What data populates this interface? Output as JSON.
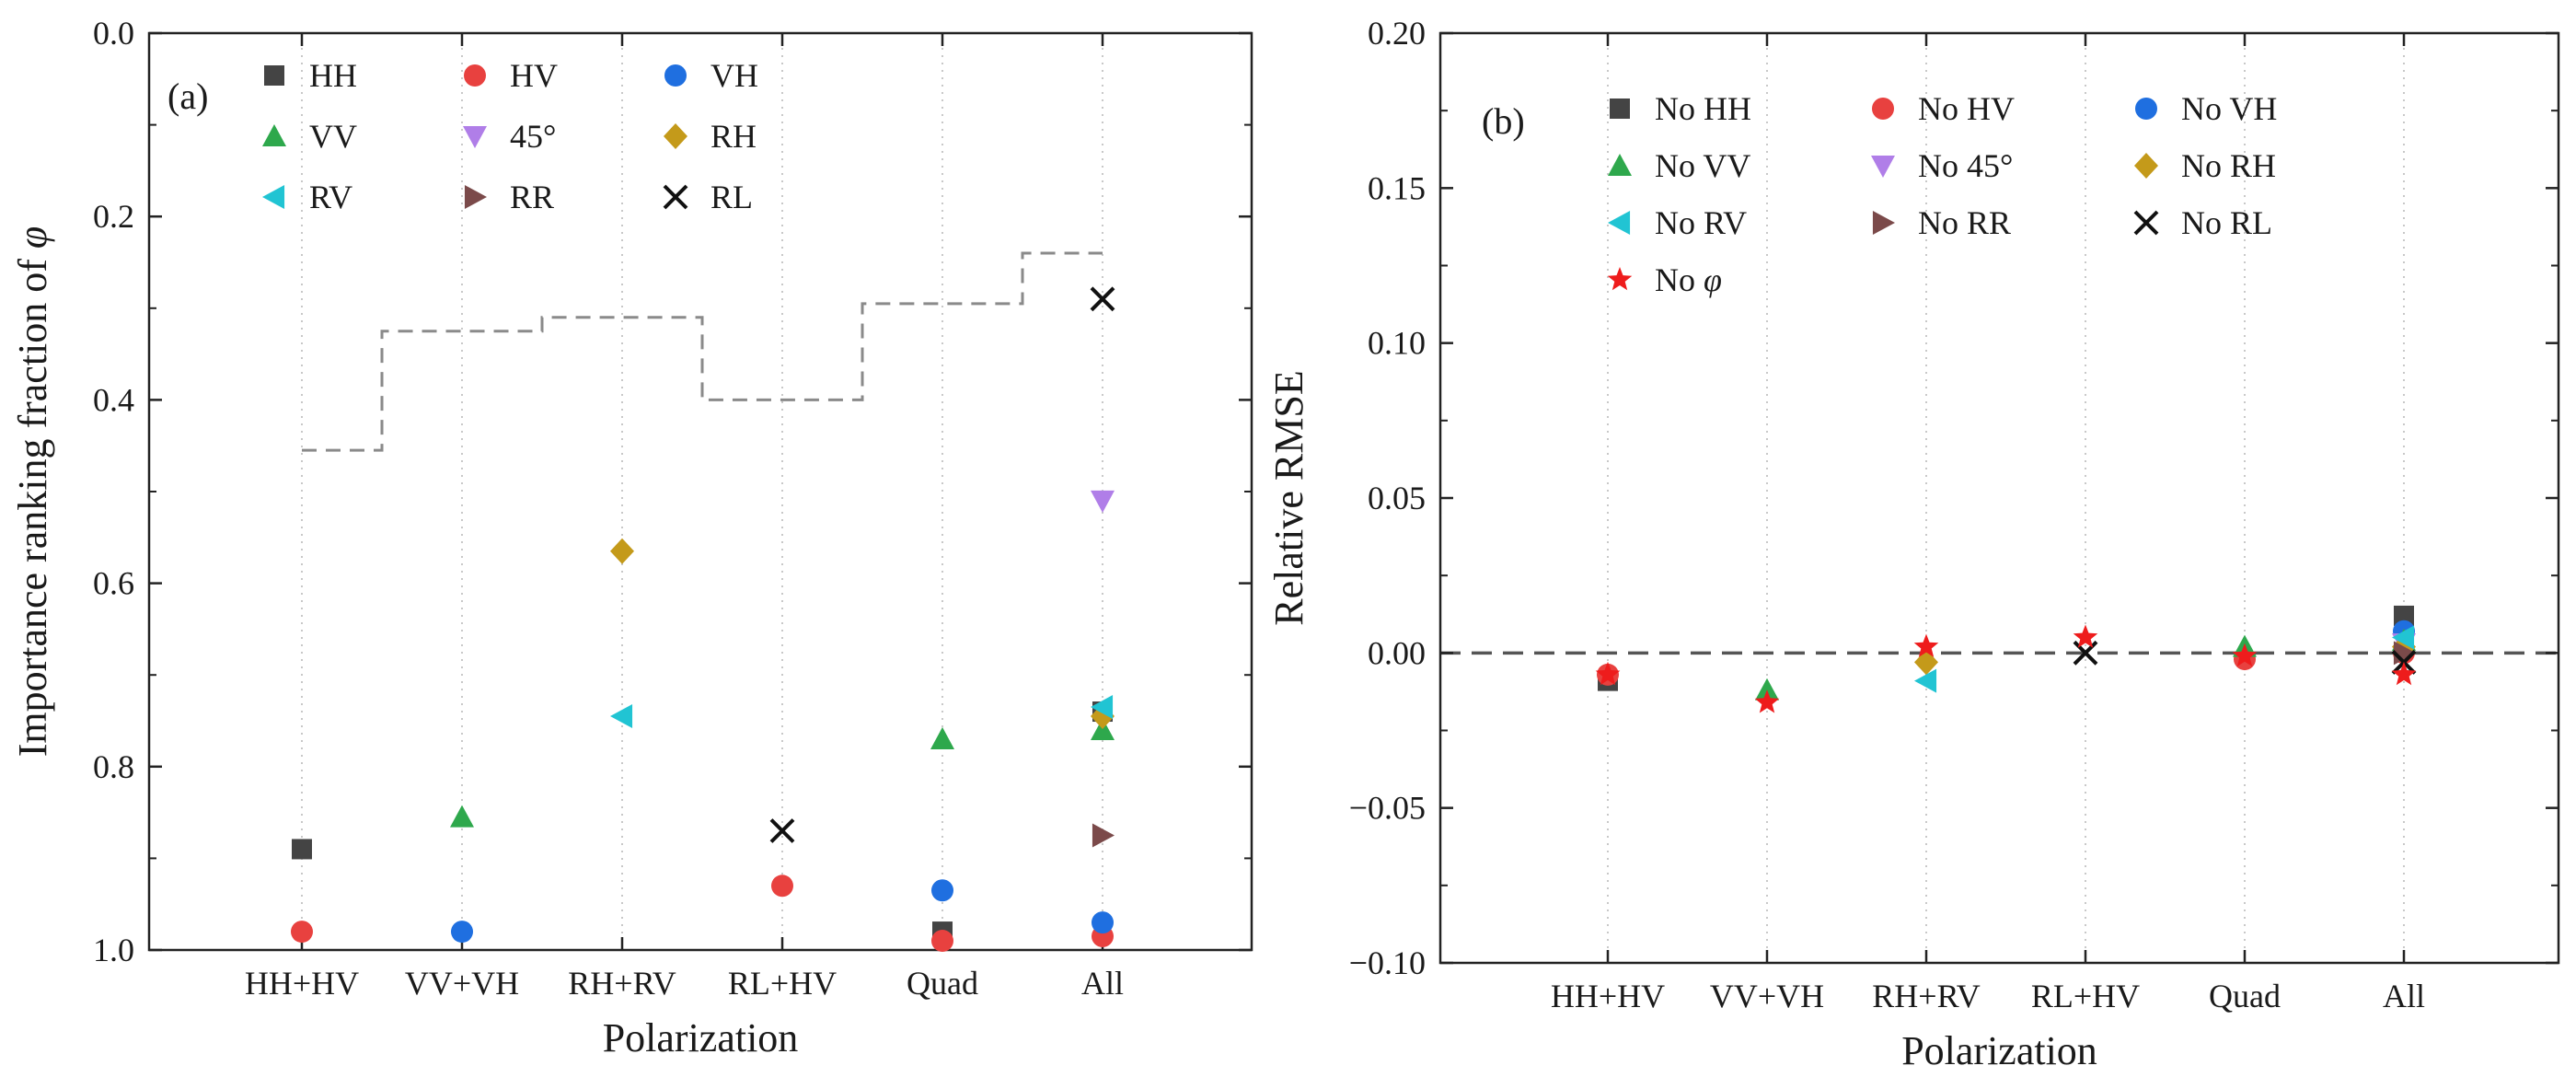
{
  "chart_data": [
    {
      "type": "scatter",
      "panel_label": "(a)",
      "xlabel": "Polarization",
      "ylabel_text": "Importance ranking fraction of ",
      "ylabel_symbol": "φ",
      "categories": [
        "HH+HV",
        "VV+VH",
        "RH+RV",
        "RL+HV",
        "Quad",
        "All"
      ],
      "ylim": [
        0.0,
        1.0
      ],
      "y_inverted": true,
      "y_ticks": [
        "0.0",
        "0.2",
        "0.4",
        "0.6",
        "0.8",
        "1.0"
      ],
      "grid": "vertical dotted",
      "legend_position": "top-left",
      "series": [
        {
          "name": "HH",
          "marker": "square",
          "color": "#444444",
          "points": [
            [
              "HH+HV",
              0.89
            ],
            [
              "Quad",
              0.98
            ],
            [
              "All",
              0.74
            ]
          ]
        },
        {
          "name": "HV",
          "marker": "circle",
          "color": "#e8413f",
          "points": [
            [
              "HH+HV",
              0.98
            ],
            [
              "RL+HV",
              0.93
            ],
            [
              "Quad",
              0.99
            ],
            [
              "All",
              0.985
            ]
          ]
        },
        {
          "name": "VH",
          "marker": "circle",
          "color": "#1f6fe0",
          "points": [
            [
              "VV+VH",
              0.98
            ],
            [
              "Quad",
              0.935
            ],
            [
              "All",
              0.97
            ]
          ]
        },
        {
          "name": "VV",
          "marker": "triangle-up",
          "color": "#2ea84c",
          "points": [
            [
              "VV+VH",
              0.855
            ],
            [
              "Quad",
              0.77
            ],
            [
              "All",
              0.76
            ]
          ]
        },
        {
          "name": "45°",
          "marker": "triangle-down",
          "color": "#b07ee8",
          "points": [
            [
              "All",
              0.51
            ]
          ]
        },
        {
          "name": "RH",
          "marker": "diamond",
          "color": "#c49a1a",
          "points": [
            [
              "RH+RV",
              0.565
            ],
            [
              "All",
              0.745
            ]
          ]
        },
        {
          "name": "RV",
          "marker": "triangle-left",
          "color": "#21c4d3",
          "points": [
            [
              "RH+RV",
              0.745
            ],
            [
              "All",
              0.735
            ]
          ]
        },
        {
          "name": "RR",
          "marker": "triangle-right",
          "color": "#7b4a4a",
          "points": [
            [
              "All",
              0.875
            ]
          ]
        },
        {
          "name": "RL",
          "marker": "x",
          "color": "#111111",
          "points": [
            [
              "RL+HV",
              0.87
            ],
            [
              "All",
              0.29
            ]
          ]
        }
      ],
      "reference_line": {
        "style": "dashed",
        "color": "#888888",
        "steps": [
          {
            "category": "HH+HV",
            "value": 0.455
          },
          {
            "category": "VV+VH",
            "value": 0.325
          },
          {
            "category": "RH+RV",
            "value": 0.31
          },
          {
            "category": "RL+HV",
            "value": 0.4
          },
          {
            "category": "Quad",
            "value": 0.295
          },
          {
            "category": "All",
            "value": 0.24
          }
        ]
      }
    },
    {
      "type": "scatter",
      "panel_label": "(b)",
      "xlabel": "Polarization",
      "ylabel": "Relative RMSE",
      "categories": [
        "HH+HV",
        "VV+VH",
        "RH+RV",
        "RL+HV",
        "Quad",
        "All"
      ],
      "ylim": [
        -0.1,
        0.2
      ],
      "y_ticks": [
        "0.20",
        "0.15",
        "0.10",
        "0.05",
        "0.00",
        "−0.05",
        "−0.10"
      ],
      "grid": "vertical dotted",
      "zero_line": "dashed",
      "legend_position": "top-left",
      "series": [
        {
          "name": "No HH",
          "marker": "square",
          "color": "#444444",
          "points": [
            [
              "HH+HV",
              -0.009
            ],
            [
              "All",
              0.012
            ]
          ]
        },
        {
          "name": "No HV",
          "marker": "circle",
          "color": "#e8413f",
          "points": [
            [
              "HH+HV",
              -0.007
            ],
            [
              "Quad",
              -0.002
            ],
            [
              "All",
              0.0
            ]
          ]
        },
        {
          "name": "No VH",
          "marker": "circle",
          "color": "#1f6fe0",
          "points": [
            [
              "All",
              0.007
            ]
          ]
        },
        {
          "name": "No VV",
          "marker": "triangle-up",
          "color": "#2ea84c",
          "points": [
            [
              "VV+VH",
              -0.012
            ],
            [
              "Quad",
              0.002
            ],
            [
              "All",
              0.004
            ]
          ]
        },
        {
          "name": "No 45°",
          "marker": "triangle-down",
          "color": "#b07ee8",
          "points": [
            [
              "All",
              0.003
            ]
          ]
        },
        {
          "name": "No RH",
          "marker": "diamond",
          "color": "#c49a1a",
          "points": [
            [
              "RH+RV",
              -0.003
            ],
            [
              "All",
              0.002
            ]
          ]
        },
        {
          "name": "No RV",
          "marker": "triangle-left",
          "color": "#21c4d3",
          "points": [
            [
              "RH+RV",
              -0.009
            ],
            [
              "All",
              0.005
            ]
          ]
        },
        {
          "name": "No RR",
          "marker": "triangle-right",
          "color": "#7b4a4a",
          "points": [
            [
              "All",
              0.0
            ]
          ]
        },
        {
          "name": "No RL",
          "marker": "x",
          "color": "#111111",
          "points": [
            [
              "RL+HV",
              0.0
            ],
            [
              "All",
              -0.003
            ]
          ]
        },
        {
          "name_text": "No ",
          "name_symbol": "φ",
          "marker": "star",
          "color": "#ee1c1c",
          "points": [
            [
              "HH+HV",
              -0.007
            ],
            [
              "VV+VH",
              -0.016
            ],
            [
              "RH+RV",
              0.002
            ],
            [
              "RL+HV",
              0.005
            ],
            [
              "Quad",
              -0.001
            ],
            [
              "All",
              -0.007
            ]
          ]
        }
      ]
    }
  ]
}
